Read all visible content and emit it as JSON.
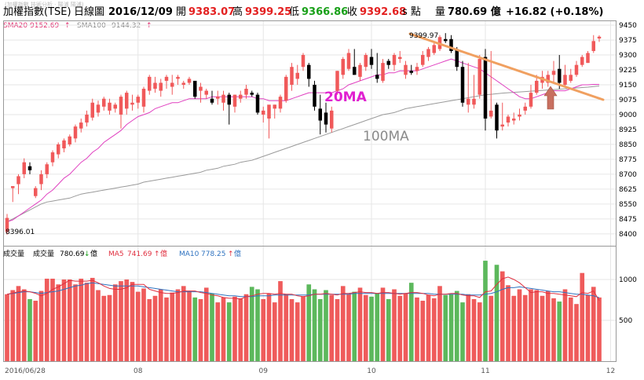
{
  "header": {
    "watermark": "(加權指數 技術分析 · 陽浦 陽浦)",
    "index_name": "加權指數(TSE)",
    "period": "日線圖",
    "date": "2016/12/09",
    "open_label": "開",
    "open": "9383.07",
    "high_label": "高",
    "high": "9399.25",
    "low_label": "低",
    "low": "9366.86",
    "close_label": "收",
    "close": "9392.68",
    "unit": "s 點",
    "volume_label": "量",
    "volume": "780.69 億",
    "change": "+16.82 (+0.18%)"
  },
  "price_legend": {
    "sma20_label": "SMA20",
    "sma20_value": "9152.69",
    "sma100_label": "SMA100",
    "sma100_value": "9144.32",
    "arrow": "↑"
  },
  "volume_legend": {
    "title": "成交量",
    "vol_label": "成交量",
    "vol_value": "780.69",
    "unit": "億",
    "ma5_label": "MA5",
    "ma5_value": "741.69",
    "ma10_label": "MA10",
    "ma10_value": "778.25",
    "down_arrow": "↓",
    "up_arrow": "↑"
  },
  "annotations": {
    "ma20_text": "20MA",
    "ma100_text": "100MA",
    "high_label": "9399.97",
    "low_label": "8396.01"
  },
  "colors": {
    "up": "#f0595a",
    "down": "#000000",
    "vol_up": "#ef5b5b",
    "vol_down": "#5cb85c",
    "ma20": "#e040c0",
    "ma100": "#9a9a9a",
    "trendline": "#f0a060",
    "arrow_fill": "#c87060",
    "legend_sma20": "#e03070",
    "legend_sma100": "#888888",
    "legend_ma5": "#e03040",
    "legend_ma10": "#2f73c0"
  },
  "chart_data": [
    {
      "type": "candlestick",
      "title": "加權指數(TSE) 日線圖",
      "y_ticks": [
        8400,
        8475,
        8550,
        8625,
        8700,
        8775,
        8850,
        8925,
        9000,
        9075,
        9150,
        9225,
        9300,
        9375,
        9450
      ],
      "ylim": [
        8340,
        9470
      ],
      "x_tick_labels": [
        {
          "label": "2016/06/28",
          "index": 0
        },
        {
          "label": "08",
          "index": 23
        },
        {
          "label": "09",
          "index": 45
        },
        {
          "label": "10",
          "index": 64
        },
        {
          "label": "11",
          "index": 84
        },
        {
          "label": "12",
          "index": 106
        }
      ],
      "open": [
        8410,
        8630,
        8650,
        8700,
        8740,
        8590,
        8650,
        8700,
        8760,
        8800,
        8830,
        8850,
        8880,
        8930,
        8960,
        8985,
        9010,
        9040,
        9020,
        9030,
        9000,
        9030,
        9050,
        9060,
        9040,
        9120,
        9130,
        9120,
        9170,
        9140,
        9180,
        9150,
        9160,
        9170,
        9120,
        9100,
        9080,
        9080,
        9060,
        9100,
        9040,
        9080,
        9100,
        9110,
        9100,
        9000,
        8980,
        9030,
        9030,
        9070,
        9150,
        9180,
        9240,
        9250,
        9150,
        9030,
        9010,
        8930,
        9120,
        9200,
        9230,
        9240,
        9190,
        9240,
        9290,
        9200,
        9170,
        9270,
        9250,
        9280,
        9200,
        9220,
        9220,
        9250,
        9290,
        9310,
        9330,
        9380,
        9380,
        9330,
        9240,
        9050,
        9050,
        9100,
        9290,
        8990,
        9050,
        8940,
        8960,
        8970,
        8990,
        9020,
        9040,
        9110,
        9160,
        9160,
        9200,
        9230,
        9150,
        9170,
        9200,
        9250,
        9260,
        9320,
        9383
      ],
      "high": [
        8500,
        8640,
        8700,
        8780,
        8760,
        8640,
        8720,
        8760,
        8820,
        8860,
        8880,
        8900,
        8950,
        8980,
        9020,
        9080,
        9070,
        9090,
        9080,
        9060,
        9100,
        9120,
        9100,
        9100,
        9140,
        9200,
        9190,
        9180,
        9200,
        9200,
        9200,
        9170,
        9190,
        9160,
        9160,
        9130,
        9120,
        9120,
        9120,
        9110,
        9100,
        9120,
        9150,
        9120,
        9110,
        9040,
        9040,
        9050,
        9100,
        9200,
        9260,
        9250,
        9310,
        9260,
        9170,
        9100,
        9060,
        9040,
        9220,
        9290,
        9330,
        9330,
        9260,
        9310,
        9330,
        9310,
        9280,
        9280,
        9310,
        9320,
        9270,
        9250,
        9260,
        9320,
        9340,
        9360,
        9400,
        9410,
        9400,
        9340,
        9270,
        9260,
        9200,
        9300,
        9330,
        9320,
        9060,
        9060,
        9000,
        9010,
        9030,
        9060,
        9150,
        9200,
        9220,
        9220,
        9270,
        9300,
        9250,
        9230,
        9270,
        9300,
        9320,
        9400,
        9399
      ],
      "low": [
        8396,
        8560,
        8600,
        8680,
        8700,
        8580,
        8620,
        8680,
        8740,
        8780,
        8810,
        8840,
        8860,
        8910,
        8940,
        8970,
        8990,
        9020,
        9000,
        9010,
        8930,
        9000,
        9020,
        9030,
        9010,
        9100,
        9110,
        9090,
        9130,
        9100,
        9150,
        9130,
        9150,
        9080,
        9060,
        9080,
        9050,
        9050,
        9020,
        8950,
        9010,
        9060,
        9080,
        9090,
        9000,
        8960,
        8880,
        8980,
        9010,
        9060,
        9120,
        9150,
        9220,
        9140,
        9020,
        8900,
        8910,
        8910,
        9100,
        9180,
        9220,
        9200,
        9170,
        9220,
        9230,
        9160,
        9160,
        9230,
        9220,
        9260,
        9180,
        9200,
        9200,
        9240,
        9270,
        9300,
        9320,
        9360,
        9310,
        9220,
        9040,
        9010,
        9030,
        9080,
        8920,
        8980,
        8880,
        8920,
        8940,
        8950,
        8970,
        9000,
        9030,
        9100,
        9130,
        9140,
        9160,
        9130,
        9140,
        9160,
        9190,
        9240,
        9260,
        9310,
        9366
      ],
      "close": [
        8480,
        8640,
        8690,
        8760,
        8720,
        8630,
        8700,
        8750,
        8810,
        8850,
        8870,
        8890,
        8940,
        8960,
        9000,
        9060,
        9050,
        9080,
        9060,
        9050,
        9090,
        9110,
        9060,
        9090,
        9130,
        9190,
        9160,
        9160,
        9190,
        9160,
        9190,
        9160,
        9180,
        9090,
        9140,
        9120,
        9060,
        9090,
        9100,
        9050,
        9100,
        9100,
        9130,
        9100,
        9010,
        9020,
        9050,
        9050,
        9090,
        9190,
        9240,
        9210,
        9300,
        9180,
        9040,
        8970,
        8950,
        9020,
        9220,
        9280,
        9310,
        9200,
        9250,
        9300,
        9250,
        9180,
        9260,
        9250,
        9300,
        9290,
        9250,
        9210,
        9240,
        9300,
        9330,
        9350,
        9390,
        9370,
        9320,
        9240,
        9060,
        9080,
        9080,
        9280,
        8980,
        9020,
        8920,
        8950,
        8990,
        8980,
        9000,
        9040,
        9110,
        9170,
        9190,
        9200,
        9220,
        9160,
        9200,
        9200,
        9250,
        9290,
        9310,
        9370,
        9392
      ],
      "ma20": [
        8460,
        8470,
        8490,
        8510,
        8530,
        8550,
        8570,
        8600,
        8620,
        8650,
        8680,
        8700,
        8730,
        8760,
        8780,
        8810,
        8830,
        8860,
        8880,
        8900,
        8920,
        8950,
        8970,
        8990,
        9000,
        9010,
        9030,
        9040,
        9050,
        9060,
        9060,
        9070,
        9080,
        9080,
        9080,
        9080,
        9090,
        9090,
        9090,
        9090,
        9090,
        9090,
        9090,
        9090,
        9080,
        9080,
        9070,
        9070,
        9070,
        9070,
        9080,
        9090,
        9100,
        9110,
        9110,
        9110,
        9110,
        9110,
        9120,
        9130,
        9150,
        9160,
        9170,
        9180,
        9190,
        9200,
        9200,
        9210,
        9210,
        9220,
        9220,
        9220,
        9220,
        9230,
        9240,
        9250,
        9260,
        9270,
        9280,
        9270,
        9260,
        9250,
        9240,
        9230,
        9210,
        9190,
        9170,
        9150,
        9130,
        9110,
        9090,
        9080,
        9080,
        9090,
        9100,
        9110,
        9120,
        9120,
        9120,
        9130,
        9140,
        9150,
        9150,
        9152,
        9152
      ],
      "ma100": [
        8460,
        8475,
        8490,
        8505,
        8520,
        8535,
        8550,
        8560,
        8565,
        8570,
        8575,
        8580,
        8590,
        8600,
        8605,
        8610,
        8615,
        8620,
        8625,
        8630,
        8635,
        8640,
        8645,
        8650,
        8660,
        8665,
        8670,
        8675,
        8680,
        8685,
        8690,
        8695,
        8700,
        8705,
        8710,
        8720,
        8725,
        8730,
        8740,
        8745,
        8750,
        8760,
        8765,
        8770,
        8780,
        8790,
        8800,
        8810,
        8820,
        8830,
        8840,
        8850,
        8860,
        8870,
        8880,
        8890,
        8900,
        8910,
        8920,
        8930,
        8940,
        8950,
        8960,
        8970,
        8980,
        8990,
        9000,
        9005,
        9010,
        9020,
        9030,
        9035,
        9040,
        9045,
        9050,
        9055,
        9060,
        9065,
        9070,
        9075,
        9080,
        9085,
        9090,
        9095,
        9100,
        9102,
        9105,
        9108,
        9110,
        9112,
        9114,
        9116,
        9118,
        9120,
        9122,
        9124,
        9126,
        9128,
        9130,
        9132,
        9134,
        9136,
        9138,
        9141,
        9144
      ]
    },
    {
      "type": "bar",
      "title": "成交量",
      "unit": "億",
      "y_ticks": [
        500,
        1000
      ],
      "ylim": [
        0,
        1250
      ],
      "volume": [
        820,
        870,
        920,
        880,
        760,
        740,
        860,
        1010,
        1010,
        940,
        1000,
        1000,
        940,
        1010,
        960,
        1020,
        870,
        800,
        810,
        940,
        980,
        1000,
        970,
        850,
        890,
        760,
        800,
        880,
        780,
        840,
        880,
        920,
        860,
        780,
        760,
        900,
        830,
        720,
        780,
        720,
        790,
        770,
        820,
        910,
        880,
        760,
        830,
        720,
        980,
        820,
        760,
        720,
        790,
        940,
        880,
        760,
        870,
        810,
        760,
        920,
        820,
        850,
        900,
        810,
        790,
        830,
        900,
        760,
        880,
        800,
        830,
        960,
        780,
        740,
        810,
        770,
        920,
        810,
        820,
        860,
        720,
        820,
        760,
        720,
        1230,
        800,
        1180,
        1100,
        930,
        800,
        880,
        810,
        880,
        870,
        800,
        860,
        770,
        730,
        880,
        780,
        700,
        1080,
        810,
        910,
        780
      ],
      "vol_ma5": [
        820,
        835,
        850,
        860,
        850,
        830,
        800,
        830,
        880,
        910,
        950,
        990,
        980,
        980,
        980,
        990,
        960,
        920,
        890,
        880,
        880,
        900,
        940,
        940,
        940,
        880,
        860,
        840,
        830,
        830,
        840,
        860,
        860,
        860,
        840,
        830,
        810,
        800,
        780,
        770,
        770,
        760,
        790,
        800,
        820,
        830,
        830,
        820,
        830,
        820,
        820,
        800,
        790,
        800,
        820,
        820,
        830,
        820,
        810,
        830,
        830,
        840,
        850,
        840,
        840,
        830,
        840,
        840,
        830,
        820,
        830,
        840,
        840,
        830,
        810,
        800,
        820,
        820,
        830,
        830,
        810,
        800,
        800,
        780,
        850,
        860,
        940,
        1010,
        1030,
        1000,
        960,
        900,
        840,
        850,
        850,
        830,
        830,
        820,
        810,
        800,
        790,
        840,
        830,
        860,
        742
      ],
      "vol_ma10": [
        820,
        830,
        840,
        850,
        850,
        840,
        830,
        840,
        850,
        860,
        880,
        900,
        920,
        930,
        950,
        960,
        950,
        940,
        930,
        920,
        920,
        920,
        920,
        920,
        910,
        900,
        890,
        880,
        870,
        860,
        850,
        850,
        850,
        850,
        850,
        840,
        830,
        820,
        810,
        800,
        800,
        790,
        790,
        790,
        800,
        800,
        800,
        810,
        810,
        810,
        810,
        810,
        810,
        810,
        820,
        820,
        820,
        820,
        820,
        820,
        820,
        830,
        830,
        830,
        830,
        830,
        830,
        830,
        830,
        830,
        830,
        830,
        830,
        830,
        830,
        820,
        820,
        820,
        820,
        820,
        820,
        810,
        810,
        810,
        820,
        830,
        850,
        880,
        900,
        900,
        910,
        900,
        890,
        880,
        870,
        860,
        850,
        850,
        840,
        830,
        820,
        820,
        810,
        800,
        778
      ]
    }
  ]
}
